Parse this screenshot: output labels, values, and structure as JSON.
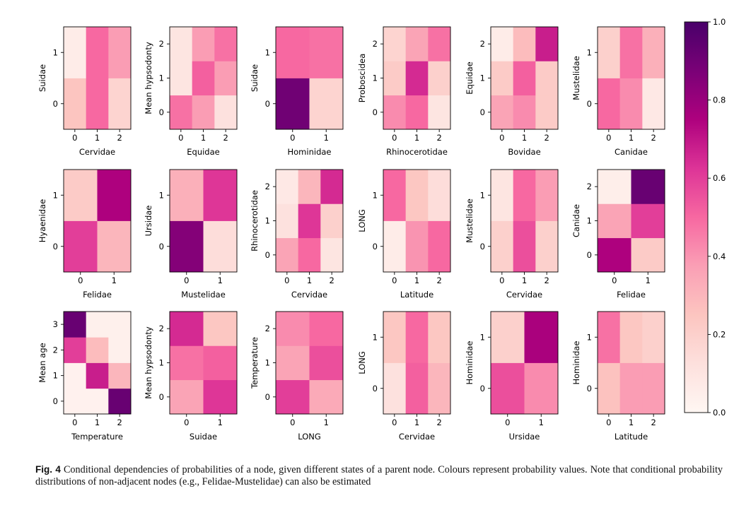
{
  "colormap": {
    "name": "RdPu",
    "stops": [
      {
        "v": 0.0,
        "c": "#fff7f3"
      },
      {
        "v": 0.125,
        "c": "#fde0dd"
      },
      {
        "v": 0.25,
        "c": "#fcc5c0"
      },
      {
        "v": 0.375,
        "c": "#fa9fb5"
      },
      {
        "v": 0.5,
        "c": "#f768a1"
      },
      {
        "v": 0.625,
        "c": "#dd3497"
      },
      {
        "v": 0.75,
        "c": "#ae017e"
      },
      {
        "v": 0.875,
        "c": "#7a0177"
      },
      {
        "v": 1.0,
        "c": "#49006a"
      }
    ]
  },
  "colorbar": {
    "ticks": [
      "0.0",
      "0.2",
      "0.4",
      "0.6",
      "0.8",
      "1.0"
    ],
    "min": 0,
    "max": 1
  },
  "chart_data": [
    {
      "type": "heatmap",
      "xlabel": "Cervidae",
      "ylabel": "Suidae",
      "x_ticks": [
        "0",
        "1",
        "2"
      ],
      "y_ticks": [
        "0",
        "1"
      ],
      "values": [
        [
          0.25,
          0.5,
          0.18
        ],
        [
          0.06,
          0.5,
          0.38
        ]
      ]
    },
    {
      "type": "heatmap",
      "xlabel": "Equidae",
      "ylabel": "Mean hypsodonty",
      "x_ticks": [
        "0",
        "1",
        "2"
      ],
      "y_ticks": [
        "0",
        "1",
        "2"
      ],
      "values": [
        [
          0.48,
          0.38,
          0.12
        ],
        [
          0.1,
          0.52,
          0.38
        ],
        [
          0.1,
          0.38,
          0.48
        ]
      ]
    },
    {
      "type": "heatmap",
      "xlabel": "Hominidae",
      "ylabel": "Suidae",
      "x_ticks": [
        "0",
        "1"
      ],
      "y_ticks": [
        "0",
        "1"
      ],
      "values": [
        [
          0.9,
          0.18
        ],
        [
          0.5,
          0.48
        ]
      ]
    },
    {
      "type": "heatmap",
      "xlabel": "Rhinocerotidae",
      "ylabel": "Proboscidea",
      "x_ticks": [
        "0",
        "1",
        "2"
      ],
      "y_ticks": [
        "0",
        "1",
        "2"
      ],
      "values": [
        [
          0.42,
          0.5,
          0.1
        ],
        [
          0.22,
          0.65,
          0.2
        ],
        [
          0.18,
          0.36,
          0.48
        ]
      ]
    },
    {
      "type": "heatmap",
      "xlabel": "Bovidae",
      "ylabel": "Equidae",
      "x_ticks": [
        "0",
        "1",
        "2"
      ],
      "y_ticks": [
        "0",
        "1",
        "2"
      ],
      "values": [
        [
          0.36,
          0.42,
          0.22
        ],
        [
          0.22,
          0.52,
          0.22
        ],
        [
          0.06,
          0.28,
          0.68
        ]
      ]
    },
    {
      "type": "heatmap",
      "xlabel": "Canidae",
      "ylabel": "Mustelidae",
      "x_ticks": [
        "0",
        "1",
        "2"
      ],
      "y_ticks": [
        "0",
        "1"
      ],
      "values": [
        [
          0.5,
          0.42,
          0.08
        ],
        [
          0.2,
          0.48,
          0.32
        ]
      ]
    },
    {
      "type": "heatmap",
      "xlabel": "Felidae",
      "ylabel": "Hyaenidae",
      "x_ticks": [
        "0",
        "1"
      ],
      "y_ticks": [
        "0",
        "1"
      ],
      "values": [
        [
          0.6,
          0.3
        ],
        [
          0.22,
          0.75
        ]
      ]
    },
    {
      "type": "heatmap",
      "xlabel": "Mustelidae",
      "ylabel": "Ursidae",
      "x_ticks": [
        "0",
        "1"
      ],
      "y_ticks": [
        "0",
        "1"
      ],
      "values": [
        [
          0.85,
          0.14
        ],
        [
          0.32,
          0.62
        ]
      ]
    },
    {
      "type": "heatmap",
      "xlabel": "Cervidae",
      "ylabel": "Rhinocerotidae",
      "x_ticks": [
        "0",
        "1",
        "2"
      ],
      "y_ticks": [
        "0",
        "1",
        "2"
      ],
      "values": [
        [
          0.36,
          0.5,
          0.1
        ],
        [
          0.12,
          0.62,
          0.2
        ],
        [
          0.08,
          0.3,
          0.65
        ]
      ]
    },
    {
      "type": "heatmap",
      "xlabel": "Latitude",
      "ylabel": "LONG",
      "x_ticks": [
        "0",
        "1",
        "2"
      ],
      "y_ticks": [
        "0",
        "1"
      ],
      "values": [
        [
          0.06,
          0.4,
          0.5
        ],
        [
          0.5,
          0.24,
          0.14
        ]
      ]
    },
    {
      "type": "heatmap",
      "xlabel": "Cervidae",
      "ylabel": "Mustelidae",
      "x_ticks": [
        "0",
        "1",
        "2"
      ],
      "y_ticks": [
        "0",
        "1"
      ],
      "values": [
        [
          0.2,
          0.56,
          0.2
        ],
        [
          0.1,
          0.5,
          0.38
        ]
      ]
    },
    {
      "type": "heatmap",
      "xlabel": "Felidae",
      "ylabel": "Canidae",
      "x_ticks": [
        "0",
        "1"
      ],
      "y_ticks": [
        "0",
        "1",
        "2"
      ],
      "values": [
        [
          0.75,
          0.22
        ],
        [
          0.36,
          0.6
        ],
        [
          0.05,
          0.92
        ]
      ]
    },
    {
      "type": "heatmap",
      "xlabel": "Temperature",
      "ylabel": "Mean age",
      "x_ticks": [
        "0",
        "1",
        "2"
      ],
      "y_ticks": [
        "0",
        "1",
        "2",
        "3"
      ],
      "values": [
        [
          0.03,
          0.03,
          0.92
        ],
        [
          0.03,
          0.68,
          0.3
        ],
        [
          0.6,
          0.28,
          0.04
        ],
        [
          0.92,
          0.04,
          0.04
        ]
      ]
    },
    {
      "type": "heatmap",
      "xlabel": "Suidae",
      "ylabel": "Mean hypsodonty",
      "x_ticks": [
        "0",
        "1"
      ],
      "y_ticks": [
        "0",
        "1",
        "2"
      ],
      "values": [
        [
          0.36,
          0.62
        ],
        [
          0.48,
          0.52
        ],
        [
          0.65,
          0.24
        ]
      ]
    },
    {
      "type": "heatmap",
      "xlabel": "LONG",
      "ylabel": "Temperature",
      "x_ticks": [
        "0",
        "1"
      ],
      "y_ticks": [
        "0",
        "1",
        "2"
      ],
      "values": [
        [
          0.6,
          0.34
        ],
        [
          0.36,
          0.56
        ],
        [
          0.42,
          0.5
        ]
      ]
    },
    {
      "type": "heatmap",
      "xlabel": "Cervidae",
      "ylabel": "LONG",
      "x_ticks": [
        "0",
        "1",
        "2"
      ],
      "y_ticks": [
        "0",
        "1"
      ],
      "values": [
        [
          0.12,
          0.52,
          0.3
        ],
        [
          0.24,
          0.5,
          0.24
        ]
      ]
    },
    {
      "type": "heatmap",
      "xlabel": "Ursidae",
      "ylabel": "Hominidae",
      "x_ticks": [
        "0",
        "1"
      ],
      "y_ticks": [
        "0",
        "1"
      ],
      "values": [
        [
          0.56,
          0.42
        ],
        [
          0.2,
          0.76
        ]
      ]
    },
    {
      "type": "heatmap",
      "xlabel": "Latitude",
      "ylabel": "Hominidae",
      "x_ticks": [
        "0",
        "1",
        "2"
      ],
      "y_ticks": [
        "0",
        "1"
      ],
      "values": [
        [
          0.26,
          0.38,
          0.38
        ],
        [
          0.48,
          0.24,
          0.2
        ]
      ]
    }
  ],
  "caption": {
    "label": "Fig. 4",
    "text": "Conditional dependencies of probabilities of a node, given different states of a parent node. Colours represent probability values. Note that conditional probability distributions of non-adjacent nodes (e.g., Felidae-Mustelidae) can also be estimated"
  }
}
